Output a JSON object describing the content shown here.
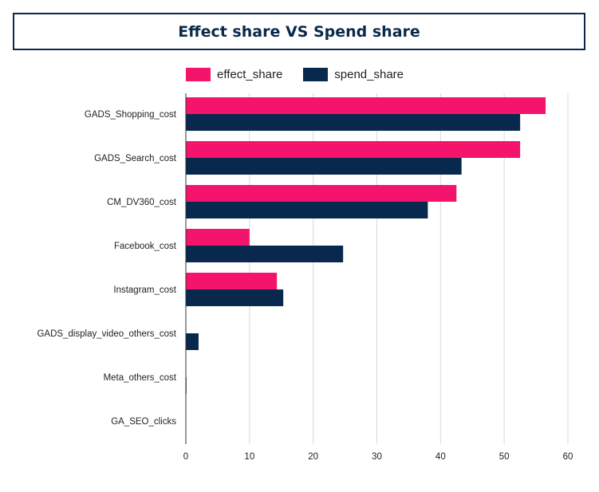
{
  "chart_data": {
    "type": "bar",
    "orientation": "horizontal",
    "title": "Effect share VS Spend share",
    "categories": [
      "GADS_Shopping_cost",
      "GADS_Search_cost",
      "CM_DV360_cost",
      "Facebook_cost",
      "Instagram_cost",
      "GADS_display_video_others_cost",
      "Meta_others_cost",
      "GA_SEO_clicks"
    ],
    "series": [
      {
        "name": "effect_share",
        "color": "#f5146b",
        "values": [
          56.5,
          52.5,
          42.5,
          10,
          14.3,
          0,
          0,
          0
        ]
      },
      {
        "name": "spend_share",
        "color": "#08294d",
        "values": [
          52.5,
          43.3,
          38,
          24.7,
          15.3,
          2,
          0.1,
          0
        ]
      }
    ],
    "xlim": [
      0,
      60
    ],
    "xticks": [
      "0",
      "10",
      "20",
      "30",
      "40",
      "50",
      "60"
    ],
    "grid": true,
    "legend_position": "top-left"
  }
}
